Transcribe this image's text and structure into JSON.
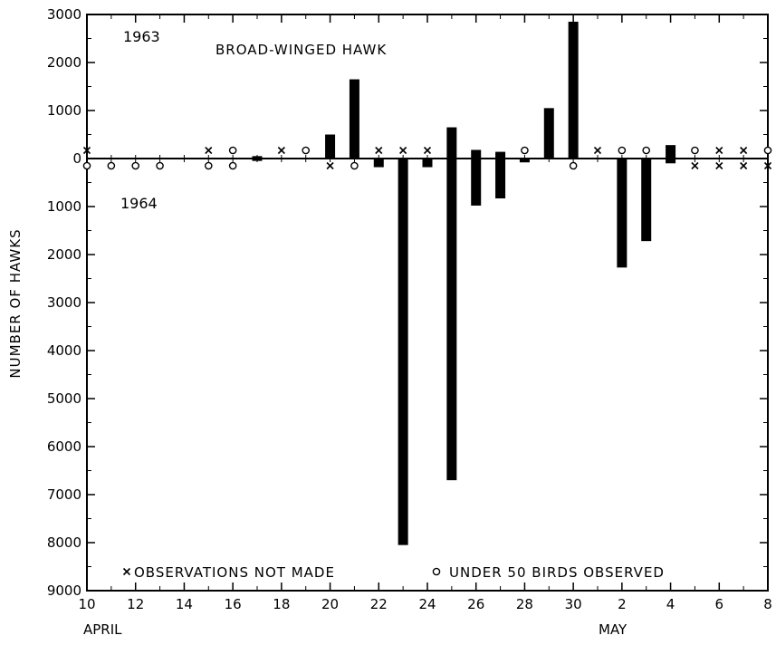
{
  "chart_data": {
    "type": "bar",
    "title": "BROAD-WINGED HAWK",
    "ylabel": "NUMBER OF HAWKS",
    "series": [
      {
        "name": "1963",
        "direction": "up"
      },
      {
        "name": "1964",
        "direction": "down"
      }
    ],
    "ylim": [
      -9000,
      3000
    ],
    "y_ticks": [
      {
        "value": 3000,
        "label": "3000"
      },
      {
        "value": 2000,
        "label": "2000"
      },
      {
        "value": 1000,
        "label": "1000"
      },
      {
        "value": 0,
        "label": "0"
      },
      {
        "value": -1000,
        "label": "1000"
      },
      {
        "value": -2000,
        "label": "2000"
      },
      {
        "value": -3000,
        "label": "3000"
      },
      {
        "value": -4000,
        "label": "4000"
      },
      {
        "value": -5000,
        "label": "5000"
      },
      {
        "value": -6000,
        "label": "6000"
      },
      {
        "value": -7000,
        "label": "7000"
      },
      {
        "value": -8000,
        "label": "8000"
      },
      {
        "value": -9000,
        "label": "9000"
      }
    ],
    "days": [
      "Apr 10",
      "Apr 11",
      "Apr 12",
      "Apr 13",
      "Apr 14",
      "Apr 15",
      "Apr 16",
      "Apr 17",
      "Apr 18",
      "Apr 19",
      "Apr 20",
      "Apr 21",
      "Apr 22",
      "Apr 23",
      "Apr 24",
      "Apr 25",
      "Apr 26",
      "Apr 27",
      "Apr 28",
      "Apr 29",
      "Apr 30",
      "May 1",
      "May 2",
      "May 3",
      "May 4",
      "May 5",
      "May 6",
      "May 7",
      "May 8"
    ],
    "x_tick_labels": [
      "10",
      "12",
      "14",
      "16",
      "18",
      "20",
      "22",
      "24",
      "26",
      "28",
      "30",
      "2",
      "4",
      "6",
      "8"
    ],
    "month_labels": [
      "APRIL",
      "MAY"
    ],
    "bars_1963": [
      {
        "day": "Apr 17",
        "value": 50
      },
      {
        "day": "Apr 20",
        "value": 500
      },
      {
        "day": "Apr 21",
        "value": 1650
      },
      {
        "day": "Apr 25",
        "value": 650
      },
      {
        "day": "Apr 26",
        "value": 180
      },
      {
        "day": "Apr 27",
        "value": 140
      },
      {
        "day": "Apr 29",
        "value": 1050
      },
      {
        "day": "Apr 30",
        "value": 2850
      },
      {
        "day": "May 4",
        "value": 280
      }
    ],
    "bars_1964": [
      {
        "day": "Apr 17",
        "value": -50
      },
      {
        "day": "Apr 22",
        "value": -180
      },
      {
        "day": "Apr 23",
        "value": -8050
      },
      {
        "day": "Apr 24",
        "value": -180
      },
      {
        "day": "Apr 25",
        "value": -6700
      },
      {
        "day": "Apr 26",
        "value": -980
      },
      {
        "day": "Apr 27",
        "value": -830
      },
      {
        "day": "Apr 28",
        "value": -80
      },
      {
        "day": "May 2",
        "value": -2270
      },
      {
        "day": "May 3",
        "value": -1720
      },
      {
        "day": "May 4",
        "value": -100
      }
    ],
    "markers_1963": [
      {
        "day": "Apr 10",
        "symbol": "x"
      },
      {
        "day": "Apr 15",
        "symbol": "x"
      },
      {
        "day": "Apr 16",
        "symbol": "o"
      },
      {
        "day": "Apr 18",
        "symbol": "x"
      },
      {
        "day": "Apr 19",
        "symbol": "o"
      },
      {
        "day": "Apr 22",
        "symbol": "x"
      },
      {
        "day": "Apr 23",
        "symbol": "x"
      },
      {
        "day": "Apr 24",
        "symbol": "x"
      },
      {
        "day": "Apr 28",
        "symbol": "o"
      },
      {
        "day": "May 1",
        "symbol": "x"
      },
      {
        "day": "May 2",
        "symbol": "o"
      },
      {
        "day": "May 3",
        "symbol": "o"
      },
      {
        "day": "May 5",
        "symbol": "o"
      },
      {
        "day": "May 6",
        "symbol": "x"
      },
      {
        "day": "May 7",
        "symbol": "x"
      },
      {
        "day": "May 8",
        "symbol": "o"
      }
    ],
    "markers_1964": [
      {
        "day": "Apr 10",
        "symbol": "o"
      },
      {
        "day": "Apr 11",
        "symbol": "o"
      },
      {
        "day": "Apr 12",
        "symbol": "o"
      },
      {
        "day": "Apr 13",
        "symbol": "o"
      },
      {
        "day": "Apr 15",
        "symbol": "o"
      },
      {
        "day": "Apr 16",
        "symbol": "o"
      },
      {
        "day": "Apr 20",
        "symbol": "x"
      },
      {
        "day": "Apr 21",
        "symbol": "o"
      },
      {
        "day": "Apr 30",
        "symbol": "o"
      },
      {
        "day": "May 5",
        "symbol": "x"
      },
      {
        "day": "May 6",
        "symbol": "x"
      },
      {
        "day": "May 7",
        "symbol": "x"
      },
      {
        "day": "May 8",
        "symbol": "x"
      }
    ],
    "legend": [
      {
        "symbol": "x",
        "label": "OBSERVATIONS  NOT  MADE"
      },
      {
        "symbol": "o",
        "label": "UNDER  50  BIRDS  OBSERVED"
      }
    ],
    "legend_position": "bottom",
    "colors": {
      "bar": "#000000",
      "axis": "#000000",
      "background": "#ffffff"
    },
    "grid": false
  }
}
